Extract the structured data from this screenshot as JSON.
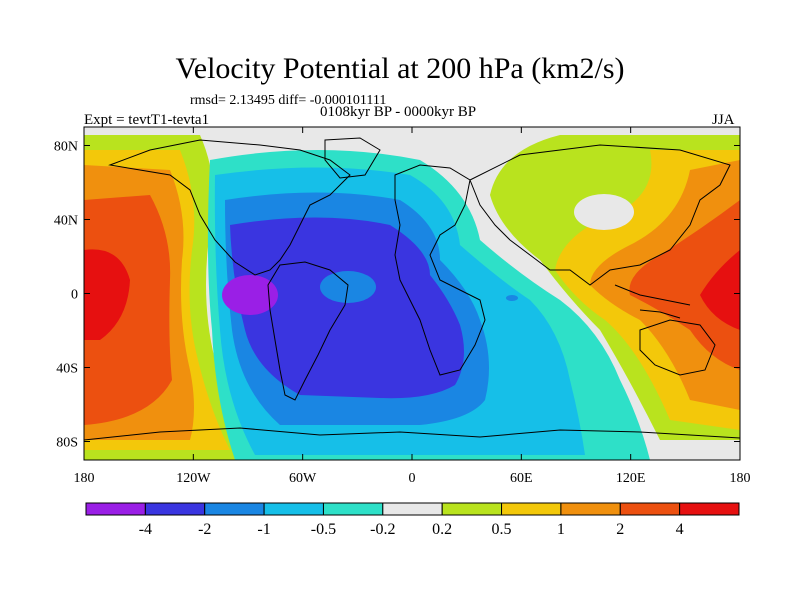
{
  "header": {
    "title": "Velocity Potential at 200 hPa (km2/s)",
    "stats": "rmsd= 2.13495 diff= -0.000101111",
    "expt": "Expt = tevtT1-tevta1",
    "period": "0108kyr BP - 0000kyr BP",
    "season": "JJA"
  },
  "axes": {
    "lat_labels": [
      "80N",
      "40N",
      "0",
      "40S",
      "80S"
    ],
    "lat_values": [
      80,
      40,
      0,
      -40,
      -80
    ],
    "lon_labels": [
      "180",
      "120W",
      "60W",
      "0",
      "60E",
      "120E",
      "180"
    ],
    "lon_values": [
      -180,
      -120,
      -60,
      0,
      60,
      120,
      180
    ]
  },
  "map": {
    "projection": "cylindrical equidistant",
    "lon_range": [
      -180,
      180
    ],
    "lat_range": [
      -90,
      90
    ],
    "field": "velocity potential anomaly, 200 hPa, JJA",
    "features": [
      {
        "name": "Pacific positive maximum",
        "lon": -160,
        "lat": 0,
        "level": 4
      },
      {
        "name": "Maritime Continent positive maximum",
        "lon": 150,
        "lat": 0,
        "level": 4
      },
      {
        "name": "Central Asia near-zero region",
        "lon": 80,
        "lat": 50,
        "level": 0
      },
      {
        "name": "Eastern Pacific negative minimum",
        "lon": -95,
        "lat": 0,
        "level": -4
      },
      {
        "name": "Atlantic negative region",
        "lon": -30,
        "lat": -10,
        "level": -2
      }
    ]
  },
  "colorbar": {
    "labels": [
      "-4",
      "-2",
      "-1",
      "-0.5",
      "-0.2",
      "0.2",
      "0.5",
      "1",
      "2",
      "4"
    ],
    "colors": [
      "#9a1fe6",
      "#3a35e0",
      "#1a86e3",
      "#16bfe8",
      "#2ee0c8",
      "#e8e8e8",
      "#b9e31e",
      "#f3c80a",
      "#f0900e",
      "#ec5010",
      "#e61010"
    ]
  }
}
